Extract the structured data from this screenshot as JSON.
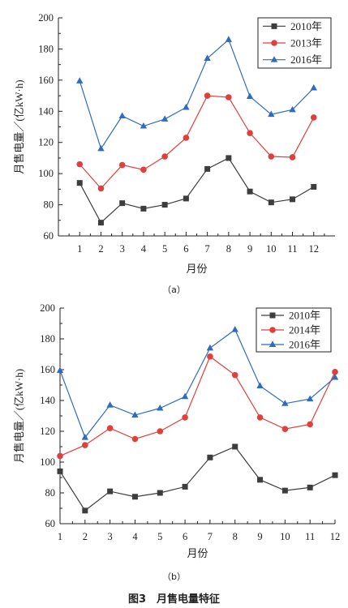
{
  "figure_caption": "图3　月售电量特征",
  "chart_data": [
    {
      "type": "line",
      "panel_label": "（a）",
      "xlabel": "月份",
      "ylabel": "月售电量／(亿kW·h)",
      "x": [
        1,
        2,
        3,
        4,
        5,
        6,
        7,
        8,
        9,
        10,
        11,
        12
      ],
      "xlim": [
        0,
        13
      ],
      "ylim": [
        60,
        200
      ],
      "yticks": [
        60,
        80,
        100,
        120,
        140,
        160,
        180,
        200
      ],
      "legend_position": "top-right",
      "grid": false,
      "series": [
        {
          "name": "2010年",
          "color": "#3d3d3d",
          "marker": "square",
          "values": [
            94,
            68.5,
            81,
            77.5,
            80,
            84,
            103,
            110,
            88.5,
            81.5,
            83.5,
            91.5
          ]
        },
        {
          "name": "2013年",
          "color": "#e0403c",
          "marker": "circle",
          "values": [
            106,
            90.5,
            105.5,
            102.5,
            111,
            123,
            150,
            149,
            126,
            111,
            110.5,
            136
          ]
        },
        {
          "name": "2016年",
          "color": "#2f6cc0",
          "marker": "triangle",
          "values": [
            159.5,
            116,
            137,
            130.5,
            135,
            142.5,
            174,
            186,
            149.5,
            138,
            141,
            155
          ]
        }
      ]
    },
    {
      "type": "line",
      "panel_label": "（b）",
      "xlabel": "月份",
      "ylabel": "月售电量／(亿kW·h)",
      "x": [
        1,
        2,
        3,
        4,
        5,
        6,
        7,
        8,
        9,
        10,
        11,
        12
      ],
      "xlim": [
        1,
        12
      ],
      "ylim": [
        60,
        200
      ],
      "yticks": [
        60,
        80,
        100,
        120,
        140,
        160,
        180,
        200
      ],
      "legend_position": "top-right",
      "grid": false,
      "series": [
        {
          "name": "2010年",
          "color": "#3d3d3d",
          "marker": "square",
          "values": [
            94,
            68.5,
            81,
            77.5,
            80,
            84,
            103,
            110,
            88.5,
            81.5,
            83.5,
            91.5
          ]
        },
        {
          "name": "2014年",
          "color": "#e0403c",
          "marker": "circle",
          "values": [
            104,
            111,
            122,
            115,
            120,
            129,
            168.5,
            156.5,
            129,
            121.5,
            124.5,
            158.5
          ]
        },
        {
          "name": "2016年",
          "color": "#2f6cc0",
          "marker": "triangle",
          "values": [
            159.5,
            116,
            137,
            130.5,
            135,
            142.5,
            174,
            186,
            149.5,
            138,
            141,
            155
          ]
        }
      ]
    }
  ]
}
